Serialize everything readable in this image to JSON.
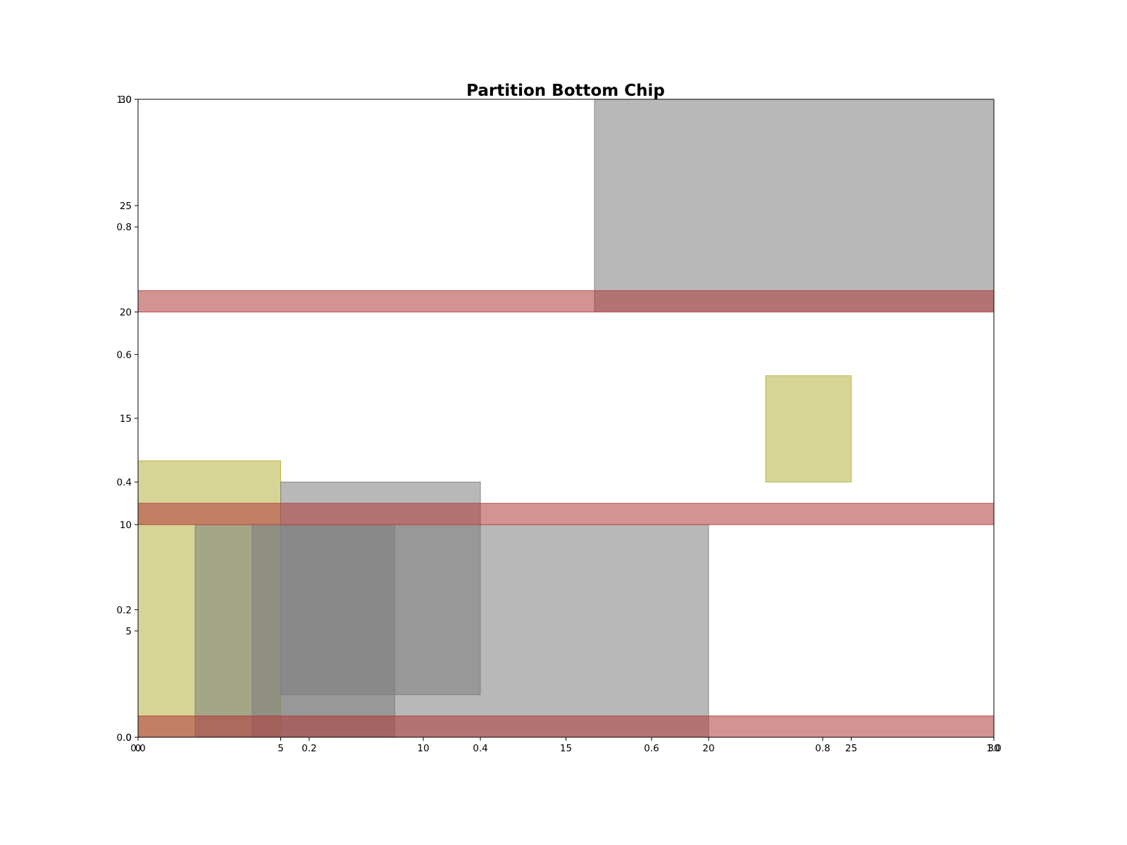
{
  "chart_data": {
    "type": "bar",
    "title": "Partition Bottom Chip",
    "xlabel": "",
    "ylabel": "",
    "grid": false,
    "xlim": [
      0,
      30
    ],
    "ylim": [
      0,
      30
    ],
    "x_ticks": [
      "0",
      "5",
      "10",
      "15",
      "20",
      "25",
      "30"
    ],
    "y_ticks": [
      "0",
      "5",
      "10",
      "15",
      "20",
      "25",
      "30"
    ],
    "secondary_x_ticks": [
      "0.0",
      "0.2",
      "0.4",
      "0.6",
      "0.8",
      "1.0"
    ],
    "secondary_y_ticks": [
      "0.0",
      "0.2",
      "0.4",
      "0.6",
      "0.8",
      "1.0"
    ],
    "series": [
      {
        "color": "#b5b23f",
        "rects": [
          {
            "x0": 0,
            "x1": 5,
            "y0": 0,
            "y1": 13
          },
          {
            "x0": 22,
            "x1": 25,
            "y0": 12,
            "y1": 17
          }
        ]
      },
      {
        "color": "#7e7e7e",
        "rects": [
          {
            "x0": 2,
            "x1": 9,
            "y0": 0,
            "y1": 10
          },
          {
            "x0": 4,
            "x1": 20,
            "y0": 0,
            "y1": 10
          },
          {
            "x0": 5,
            "x1": 12,
            "y0": 2,
            "y1": 12
          },
          {
            "x0": 16,
            "x1": 30,
            "y0": 20,
            "y1": 30
          }
        ]
      },
      {
        "color": "#b03a3a",
        "rects": [
          {
            "x0": 0,
            "x1": 30,
            "y0": 0,
            "y1": 1
          },
          {
            "x0": 0,
            "x1": 30,
            "y0": 10,
            "y1": 11
          },
          {
            "x0": 0,
            "x1": 30,
            "y0": 20,
            "y1": 21
          }
        ]
      }
    ]
  }
}
